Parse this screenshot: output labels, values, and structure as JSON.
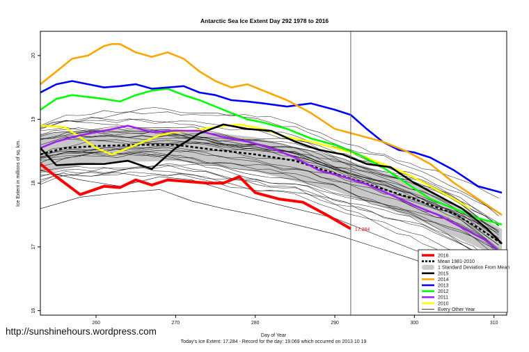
{
  "footer": {
    "url": "http://sunshinehours.wordpress.com",
    "record_line": "Today's Ice Extent: 17.284  - Record for the day: 19.069 which occurred on 2013 10 19"
  },
  "chart_data": {
    "type": "line",
    "title": "Antarctic Sea Ice Extent Day 292 1978 to 2016",
    "xlabel": "Day of Year",
    "ylabel": "Ice Extent in millions of sq. km.",
    "xlim": [
      253,
      311.6
    ],
    "ylim": [
      15.93,
      20.38
    ],
    "xticks": [
      260,
      270,
      280,
      290,
      300,
      310
    ],
    "yticks": [
      16,
      17,
      18,
      19,
      20
    ],
    "current_day_marker": 292,
    "current_value_label": "17.284",
    "colors": {
      "2016": "#ff0000",
      "mean": "#000000",
      "std_band": "#c8c8c8",
      "2015": "#000000",
      "2014": "#ffa500",
      "2013": "#0000ff",
      "2012": "#00ff00",
      "2011": "#a020f0",
      "2010": "#ffff00",
      "other": "#000000"
    },
    "legend": {
      "position": "bottom-right",
      "entries": [
        {
          "label": "2016",
          "key": "2016",
          "style": "thick"
        },
        {
          "label": "Mean 1981-2010",
          "key": "mean",
          "style": "dashed"
        },
        {
          "label": "1 Standard Deviation From Mean",
          "key": "std_band",
          "style": "band"
        },
        {
          "label": "2015",
          "key": "2015",
          "style": "thick"
        },
        {
          "label": "2014",
          "key": "2014",
          "style": "thick"
        },
        {
          "label": "2013",
          "key": "2013",
          "style": "thick"
        },
        {
          "label": "2012",
          "key": "2012",
          "style": "thick"
        },
        {
          "label": "2011",
          "key": "2011",
          "style": "thick"
        },
        {
          "label": "2010",
          "key": "2010",
          "style": "thick"
        },
        {
          "label": "Every Other Year",
          "key": "other",
          "style": "thin"
        }
      ]
    },
    "mean": {
      "x": [
        253,
        256,
        260,
        265,
        270,
        275,
        280,
        285,
        290,
        295,
        300,
        305,
        308,
        311
      ],
      "y": [
        18.45,
        18.55,
        18.58,
        18.6,
        18.6,
        18.52,
        18.45,
        18.35,
        18.15,
        17.95,
        17.75,
        17.52,
        17.3,
        17.05
      ]
    },
    "std_band": {
      "x": [
        253,
        260,
        270,
        280,
        290,
        300,
        311
      ],
      "upper": [
        18.78,
        18.85,
        18.85,
        18.72,
        18.42,
        18.02,
        17.28
      ],
      "lower": [
        18.15,
        18.32,
        18.35,
        18.18,
        17.88,
        17.45,
        16.82
      ]
    },
    "series": [
      {
        "name": "2016",
        "key": "2016",
        "x": [
          253,
          255,
          258,
          261,
          263,
          265,
          267,
          269,
          271,
          274,
          276,
          278,
          280,
          283,
          286,
          289,
          292
        ],
        "y": [
          18.3,
          18.1,
          17.82,
          17.95,
          17.93,
          18.05,
          17.97,
          18.05,
          18.03,
          18.0,
          18.0,
          18.1,
          17.85,
          17.75,
          17.7,
          17.5,
          17.284
        ]
      },
      {
        "name": "2015",
        "key": "2015",
        "x": [
          253,
          255,
          258,
          261,
          264,
          267,
          270,
          273,
          276,
          279,
          282,
          285,
          288,
          291,
          294,
          297,
          300,
          303,
          306,
          309,
          311
        ],
        "y": [
          18.55,
          18.28,
          18.3,
          18.3,
          18.35,
          18.22,
          18.55,
          18.78,
          18.92,
          18.85,
          18.82,
          18.65,
          18.52,
          18.45,
          18.3,
          18.25,
          18.0,
          17.8,
          17.6,
          17.3,
          17.05
        ]
      },
      {
        "name": "2014",
        "key": "2014",
        "x": [
          253,
          255,
          257,
          259,
          261,
          262,
          263,
          265,
          267,
          269,
          271,
          273,
          275,
          277,
          279,
          281,
          284,
          287,
          290,
          293,
          296,
          299,
          302,
          305,
          308,
          311
        ],
        "y": [
          19.55,
          19.75,
          19.95,
          20.0,
          20.15,
          20.18,
          20.18,
          20.05,
          19.98,
          20.05,
          19.95,
          19.75,
          19.6,
          19.5,
          19.55,
          19.45,
          19.3,
          19.1,
          18.85,
          18.75,
          18.65,
          18.5,
          18.3,
          18.0,
          17.75,
          17.5
        ]
      },
      {
        "name": "2013",
        "key": "2013",
        "x": [
          253,
          255,
          257,
          259,
          261,
          263,
          265,
          267,
          269,
          271,
          273,
          275,
          277,
          279,
          281,
          284,
          287,
          290,
          292,
          294,
          296,
          298,
          300,
          302,
          305,
          308,
          311
        ],
        "y": [
          19.42,
          19.55,
          19.6,
          19.55,
          19.5,
          19.52,
          19.55,
          19.48,
          19.5,
          19.52,
          19.42,
          19.38,
          19.3,
          19.28,
          19.25,
          19.2,
          19.25,
          19.15,
          19.07,
          18.85,
          18.65,
          18.52,
          18.48,
          18.4,
          18.2,
          17.95,
          17.85
        ]
      },
      {
        "name": "2012",
        "key": "2012",
        "x": [
          253,
          255,
          257,
          259,
          261,
          263,
          265,
          267,
          269,
          271,
          273,
          275,
          277,
          279,
          281,
          284,
          287,
          290,
          293,
          296,
          299,
          302,
          305,
          308,
          311
        ],
        "y": [
          19.15,
          19.32,
          19.38,
          19.35,
          19.32,
          19.28,
          19.38,
          19.45,
          19.48,
          19.38,
          19.3,
          19.2,
          19.1,
          19.0,
          18.95,
          18.85,
          18.7,
          18.6,
          18.45,
          18.25,
          18.0,
          17.75,
          17.6,
          17.45,
          17.35
        ]
      },
      {
        "name": "2011",
        "key": "2011",
        "x": [
          253,
          255,
          258,
          261,
          264,
          267,
          270,
          273,
          276,
          279,
          282,
          285,
          288,
          291,
          294,
          297,
          300,
          303,
          306,
          309,
          311
        ],
        "y": [
          18.55,
          18.65,
          18.75,
          18.82,
          18.9,
          18.8,
          18.82,
          18.82,
          18.72,
          18.65,
          18.55,
          18.4,
          18.2,
          18.1,
          17.98,
          17.82,
          17.65,
          17.5,
          17.3,
          17.1,
          16.9
        ]
      },
      {
        "name": "2010",
        "key": "2010",
        "x": [
          253,
          256,
          258,
          260,
          262,
          264,
          266,
          268,
          270,
          272,
          275,
          278,
          281,
          284,
          287,
          290,
          293,
          296,
          299,
          302,
          305,
          307
        ],
        "y": [
          18.9,
          18.88,
          18.72,
          18.55,
          18.45,
          18.55,
          18.65,
          18.75,
          18.8,
          18.82,
          18.88,
          18.92,
          18.85,
          18.72,
          18.65,
          18.55,
          18.45,
          18.3,
          18.15,
          17.95,
          17.75,
          17.6
        ]
      }
    ]
  }
}
